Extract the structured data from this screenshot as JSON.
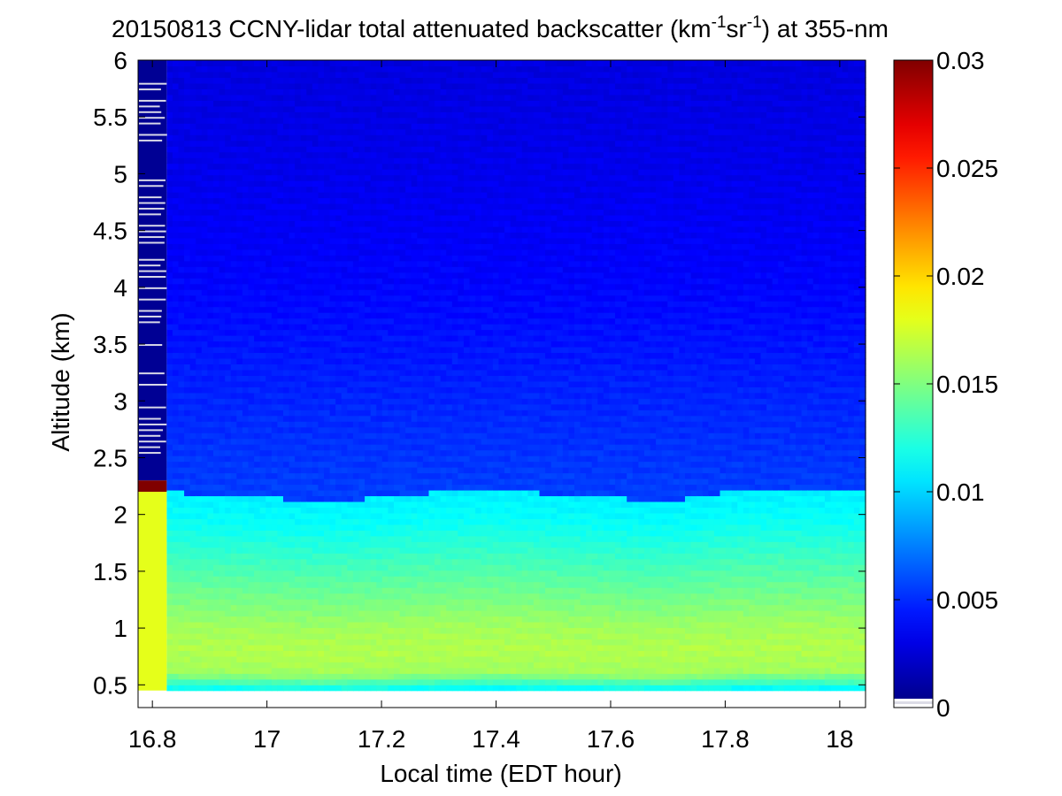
{
  "chart_data": {
    "type": "heatmap",
    "title": {
      "prefix": "20150813 CCNY-lidar total attenuated backscatter (km",
      "sup1": "-1",
      "mid": "sr",
      "sup2": "-1",
      "suffix": ") at 355-nm"
    },
    "xlabel": "Local time (EDT hour)",
    "ylabel": "Altitude (km)",
    "xlim": [
      16.775,
      18.045
    ],
    "ylim": [
      0.3,
      6.0
    ],
    "xticks": [
      16.8,
      17.0,
      17.2,
      17.4,
      17.6,
      17.8,
      18.0
    ],
    "xtick_labels": [
      "16.8",
      "17",
      "17.2",
      "17.4",
      "17.6",
      "17.8",
      "18"
    ],
    "yticks": [
      0.5,
      1.0,
      1.5,
      2.0,
      2.5,
      3.0,
      3.5,
      4.0,
      4.5,
      5.0,
      5.5,
      6.0
    ],
    "ytick_labels": [
      "0.5",
      "1",
      "1.5",
      "2",
      "2.5",
      "3",
      "3.5",
      "4",
      "4.5",
      "5",
      "5.5",
      "6"
    ],
    "data_altitude_range": [
      0.45,
      6.0
    ],
    "colorbar": {
      "colormap": "jet",
      "range": [
        0,
        0.03
      ],
      "ticks": [
        0,
        0.005,
        0.01,
        0.015,
        0.02,
        0.025,
        0.03
      ],
      "tick_labels": [
        "0",
        "0.005",
        "0.01",
        "0.015",
        "0.02",
        "0.025",
        "0.03"
      ]
    },
    "boundary_layer_top_km": [
      [
        16.82,
        2.2
      ],
      [
        16.9,
        2.18
      ],
      [
        17.0,
        2.15
      ],
      [
        17.1,
        2.12
      ],
      [
        17.2,
        2.15
      ],
      [
        17.3,
        2.2
      ],
      [
        17.4,
        2.22
      ],
      [
        17.5,
        2.18
      ],
      [
        17.6,
        2.15
      ],
      [
        17.7,
        2.12
      ],
      [
        17.8,
        2.2
      ],
      [
        17.9,
        2.22
      ],
      [
        18.04,
        2.2
      ]
    ],
    "profile_altitude_km": [
      0.45,
      0.6,
      0.8,
      1.0,
      1.3,
      1.6,
      1.9,
      2.15,
      2.25,
      3.0,
      4.0,
      5.0,
      6.0
    ],
    "profile_backscatter": [
      0.011,
      0.016,
      0.0165,
      0.016,
      0.0145,
      0.013,
      0.0115,
      0.0108,
      0.0055,
      0.0048,
      0.0038,
      0.0032,
      0.0028
    ],
    "first_column": {
      "time_range": [
        16.775,
        16.825
      ],
      "below_layer_backscatter": 0.018,
      "layer_altitude_km": [
        2.2,
        2.3
      ],
      "layer_backscatter": 0.03,
      "above_layer_backscatter": 0.0006
    }
  }
}
